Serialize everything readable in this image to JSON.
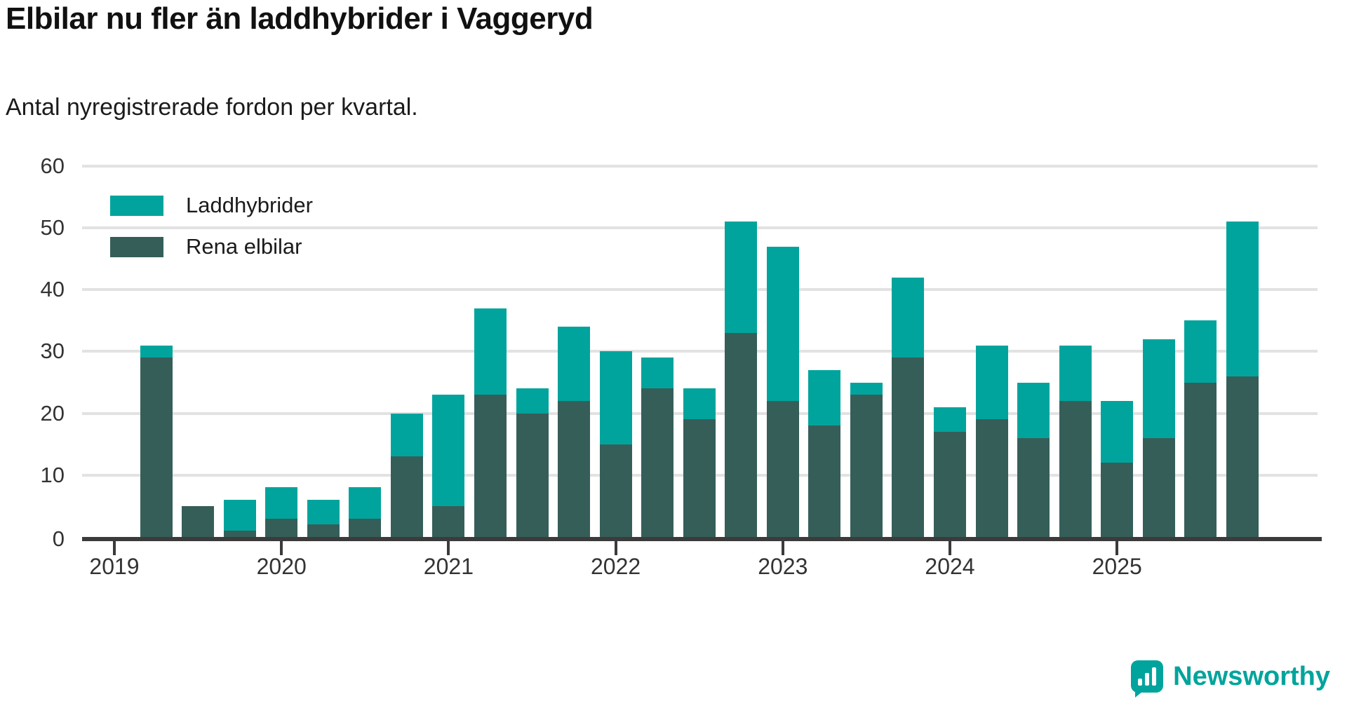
{
  "header": {
    "title": "Elbilar nu fler än laddhybrider i Vaggeryd",
    "subtitle": "Antal nyregistrerade fordon per kvartal."
  },
  "legend": {
    "items": [
      {
        "label": "Laddhybrider",
        "color": "#00a49c"
      },
      {
        "label": "Rena elbilar",
        "color": "#365e59"
      }
    ]
  },
  "colors": {
    "plugin_hybrid": "#00a49c",
    "pure_electric": "#365e59",
    "gridline": "#e2e2e2",
    "axis": "#3b3b3b",
    "text": "#333333"
  },
  "chart_data": {
    "type": "bar",
    "stacked": true,
    "title": "Elbilar nu fler än laddhybrider i Vaggeryd",
    "subtitle": "Antal nyregistrerade fordon per kvartal.",
    "xlabel": "",
    "ylabel": "",
    "ylim": [
      0,
      60
    ],
    "yticks": [
      0,
      10,
      20,
      30,
      40,
      50,
      60
    ],
    "grid": "horizontal",
    "legend_position": "top-left-inside",
    "x_year_labels": [
      "2019",
      "2020",
      "2021",
      "2022",
      "2023",
      "2024",
      "2025"
    ],
    "categories": [
      "2019 Q1",
      "2019 Q2",
      "2019 Q3",
      "2019 Q4",
      "2020 Q1",
      "2020 Q2",
      "2020 Q3",
      "2020 Q4",
      "2021 Q1",
      "2021 Q2",
      "2021 Q3",
      "2021 Q4",
      "2022 Q1",
      "2022 Q2",
      "2022 Q3",
      "2022 Q4",
      "2023 Q1",
      "2023 Q2",
      "2023 Q3",
      "2023 Q4",
      "2024 Q1",
      "2024 Q2",
      "2024 Q3",
      "2024 Q4",
      "2025 Q1",
      "2025 Q2",
      "2025 Q3",
      "2025 Q4"
    ],
    "series": [
      {
        "name": "Rena elbilar",
        "color": "#365e59",
        "stack_order": 0,
        "values": [
          0,
          29,
          5,
          1,
          3,
          2,
          3,
          13,
          5,
          23,
          20,
          22,
          15,
          24,
          19,
          33,
          22,
          18,
          23,
          29,
          17,
          19,
          16,
          22,
          12,
          16,
          25,
          26
        ]
      },
      {
        "name": "Laddhybrider",
        "color": "#00a49c",
        "stack_order": 1,
        "values": [
          0,
          2,
          0,
          5,
          5,
          4,
          5,
          7,
          18,
          14,
          4,
          12,
          15,
          5,
          5,
          18,
          25,
          9,
          2,
          13,
          4,
          12,
          9,
          9,
          10,
          16,
          10,
          25
        ]
      }
    ],
    "totals": [
      0,
      31,
      5,
      6,
      8,
      6,
      8,
      20,
      23,
      37,
      24,
      34,
      30,
      29,
      24,
      51,
      47,
      27,
      25,
      42,
      21,
      31,
      25,
      31,
      22,
      32,
      35,
      51
    ]
  },
  "logo": {
    "text": "Newsworthy"
  }
}
